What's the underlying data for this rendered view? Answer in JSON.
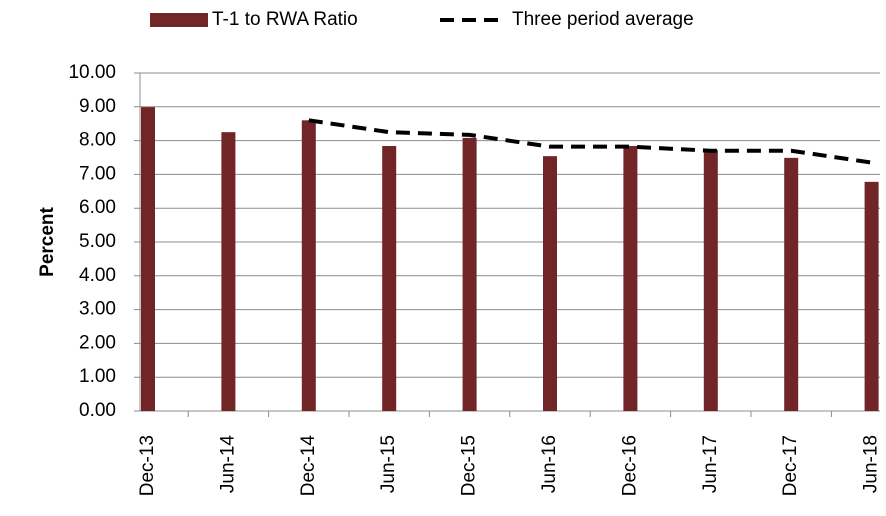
{
  "chart_data": {
    "type": "bar",
    "categories": [
      "Dec-13",
      "Jun-14",
      "Dec-14",
      "Jun-15",
      "Dec-15",
      "Jun-16",
      "Dec-16",
      "Jun-17",
      "Dec-17",
      "Jun-18"
    ],
    "series": [
      {
        "name": "T-1 to RWA Ratio",
        "type": "bar",
        "color": "#722527",
        "values": [
          8.99,
          8.25,
          8.6,
          7.84,
          8.08,
          7.54,
          7.84,
          7.72,
          7.49,
          6.78
        ]
      },
      {
        "name": "Three period average",
        "type": "line",
        "color": "#000000",
        "dashed": true,
        "values": [
          null,
          null,
          8.6,
          8.25,
          8.17,
          7.82,
          7.82,
          7.7,
          7.7,
          7.35
        ]
      }
    ],
    "y_label": "Percent",
    "ylim": [
      0,
      10
    ],
    "yticks": [
      {
        "value": 0,
        "label": "0.00"
      },
      {
        "value": 1,
        "label": "1.00"
      },
      {
        "value": 2,
        "label": "2.00"
      },
      {
        "value": 3,
        "label": "3.00"
      },
      {
        "value": 4,
        "label": "4.00"
      },
      {
        "value": 5,
        "label": "5.00"
      },
      {
        "value": 6,
        "label": "6.00"
      },
      {
        "value": 7,
        "label": "7.00"
      },
      {
        "value": 8,
        "label": "8.00"
      },
      {
        "value": 9,
        "label": "9.00"
      },
      {
        "value": 10,
        "label": "10.00"
      }
    ],
    "grid": true,
    "legend": "top"
  }
}
